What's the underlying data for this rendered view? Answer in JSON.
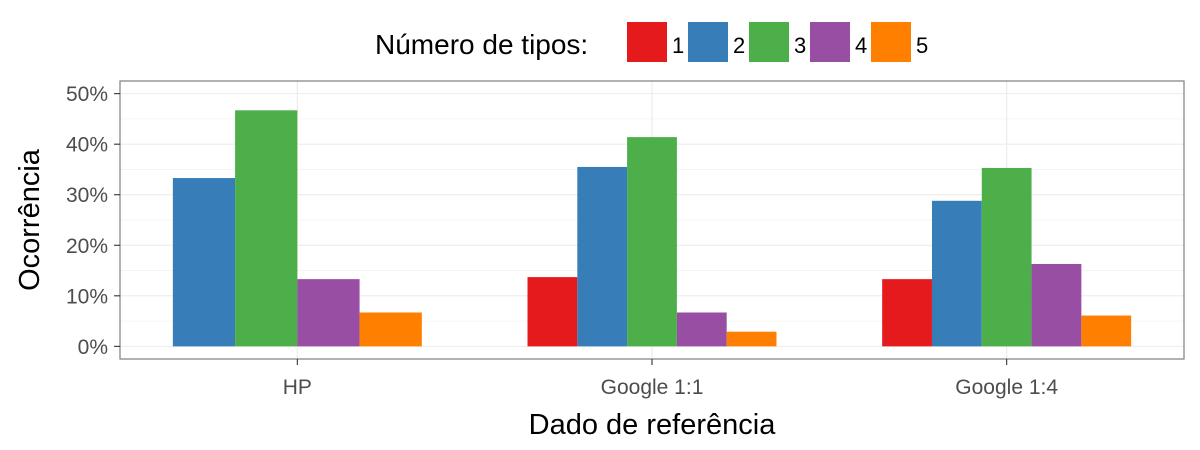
{
  "chart_data": {
    "type": "bar",
    "categories": [
      "HP",
      "Google 1:1",
      "Google 1:4"
    ],
    "series": [
      {
        "name": "1",
        "values": [
          0,
          13.7,
          13.3
        ],
        "color": "#E41A1C"
      },
      {
        "name": "2",
        "values": [
          33.3,
          35.5,
          28.8
        ],
        "color": "#377EB8"
      },
      {
        "name": "3",
        "values": [
          46.7,
          41.4,
          35.3
        ],
        "color": "#4DAF4A"
      },
      {
        "name": "4",
        "values": [
          13.3,
          6.7,
          16.3
        ],
        "color": "#984EA3"
      },
      {
        "name": "5",
        "values": [
          6.7,
          2.9,
          6.1
        ],
        "color": "#FF7F00"
      }
    ],
    "xlabel": "Dado de referência",
    "ylabel": "Ocorrência",
    "ylim": [
      -2.5,
      52.5
    ],
    "yticks": [
      0,
      10,
      20,
      30,
      40,
      50
    ],
    "ytick_labels": [
      "0%",
      "10%",
      "20%",
      "30%",
      "40%",
      "50%"
    ],
    "legend_title": "Número de tipos:",
    "legend_position": "top",
    "grid": true
  }
}
